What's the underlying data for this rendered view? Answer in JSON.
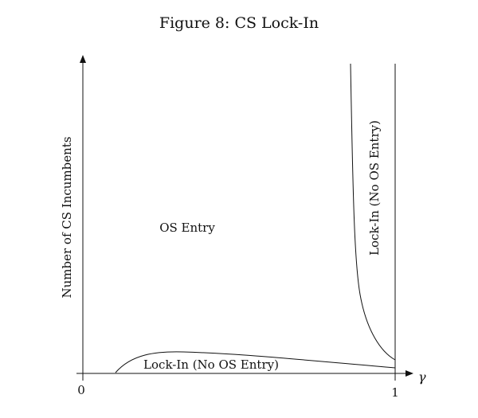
{
  "figure": {
    "title": "Figure 8: CS Lock-In"
  },
  "axes": {
    "y_label": "Number of CS Incumbents",
    "x_symbol": "γ",
    "x_origin_label": "0",
    "x_end_label": "1"
  },
  "regions": {
    "os_entry": "OS Entry",
    "lock_in_right": "Lock-In (No OS Entry)",
    "lock_in_bottom": "Lock-In (No OS Entry)"
  },
  "colors": {
    "ink": "#111111",
    "background": "#ffffff"
  }
}
